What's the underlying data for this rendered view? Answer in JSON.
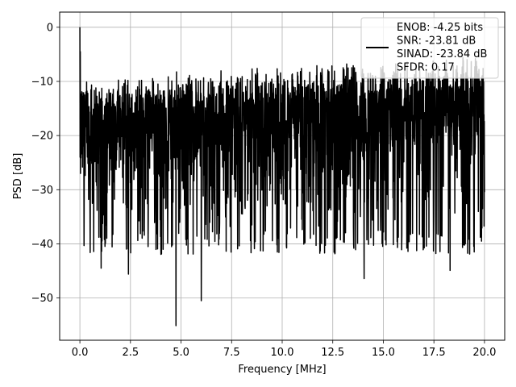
{
  "chart_data": {
    "type": "line",
    "title": "",
    "xlabel": "Frequency [MHz]",
    "ylabel": "PSD [dB]",
    "xlim": [
      -1.0,
      21.0
    ],
    "ylim": [
      -57.8,
      2.8
    ],
    "xticks": [
      0.0,
      2.5,
      5.0,
      7.5,
      10.0,
      12.5,
      15.0,
      17.5,
      20.0
    ],
    "xtick_labels": [
      "0.0",
      "2.5",
      "5.0",
      "7.5",
      "10.0",
      "12.5",
      "15.0",
      "17.5",
      "20.0"
    ],
    "yticks": [
      0,
      -10,
      -20,
      -30,
      -40,
      -50
    ],
    "ytick_labels": [
      "0",
      "−10",
      "−20",
      "−30",
      "−40",
      "−50"
    ],
    "grid": true,
    "legend_placement": "upper right",
    "series": [
      {
        "color": "#000000",
        "x_range": [
          0,
          20
        ],
        "noise_floor_db": -18,
        "peak_db": 0.0,
        "envelope_top_db": [
          -9,
          -5
        ],
        "envelope_bottom_db": [
          -30,
          -40
        ],
        "deep_nulls": [
          {
            "x": 1.05,
            "y": -44.5
          },
          {
            "x": 2.4,
            "y": -45.6
          },
          {
            "x": 4.75,
            "y": -55.1
          },
          {
            "x": 6.0,
            "y": -50.5
          },
          {
            "x": 14.05,
            "y": -46.4
          },
          {
            "x": 18.3,
            "y": -44.9
          }
        ]
      }
    ],
    "legend": {
      "lines": [
        "ENOB: -4.25 bits",
        "SNR: -23.81 dB",
        "SINAD: -23.84 dB",
        "SFDR: 0.17"
      ]
    }
  }
}
